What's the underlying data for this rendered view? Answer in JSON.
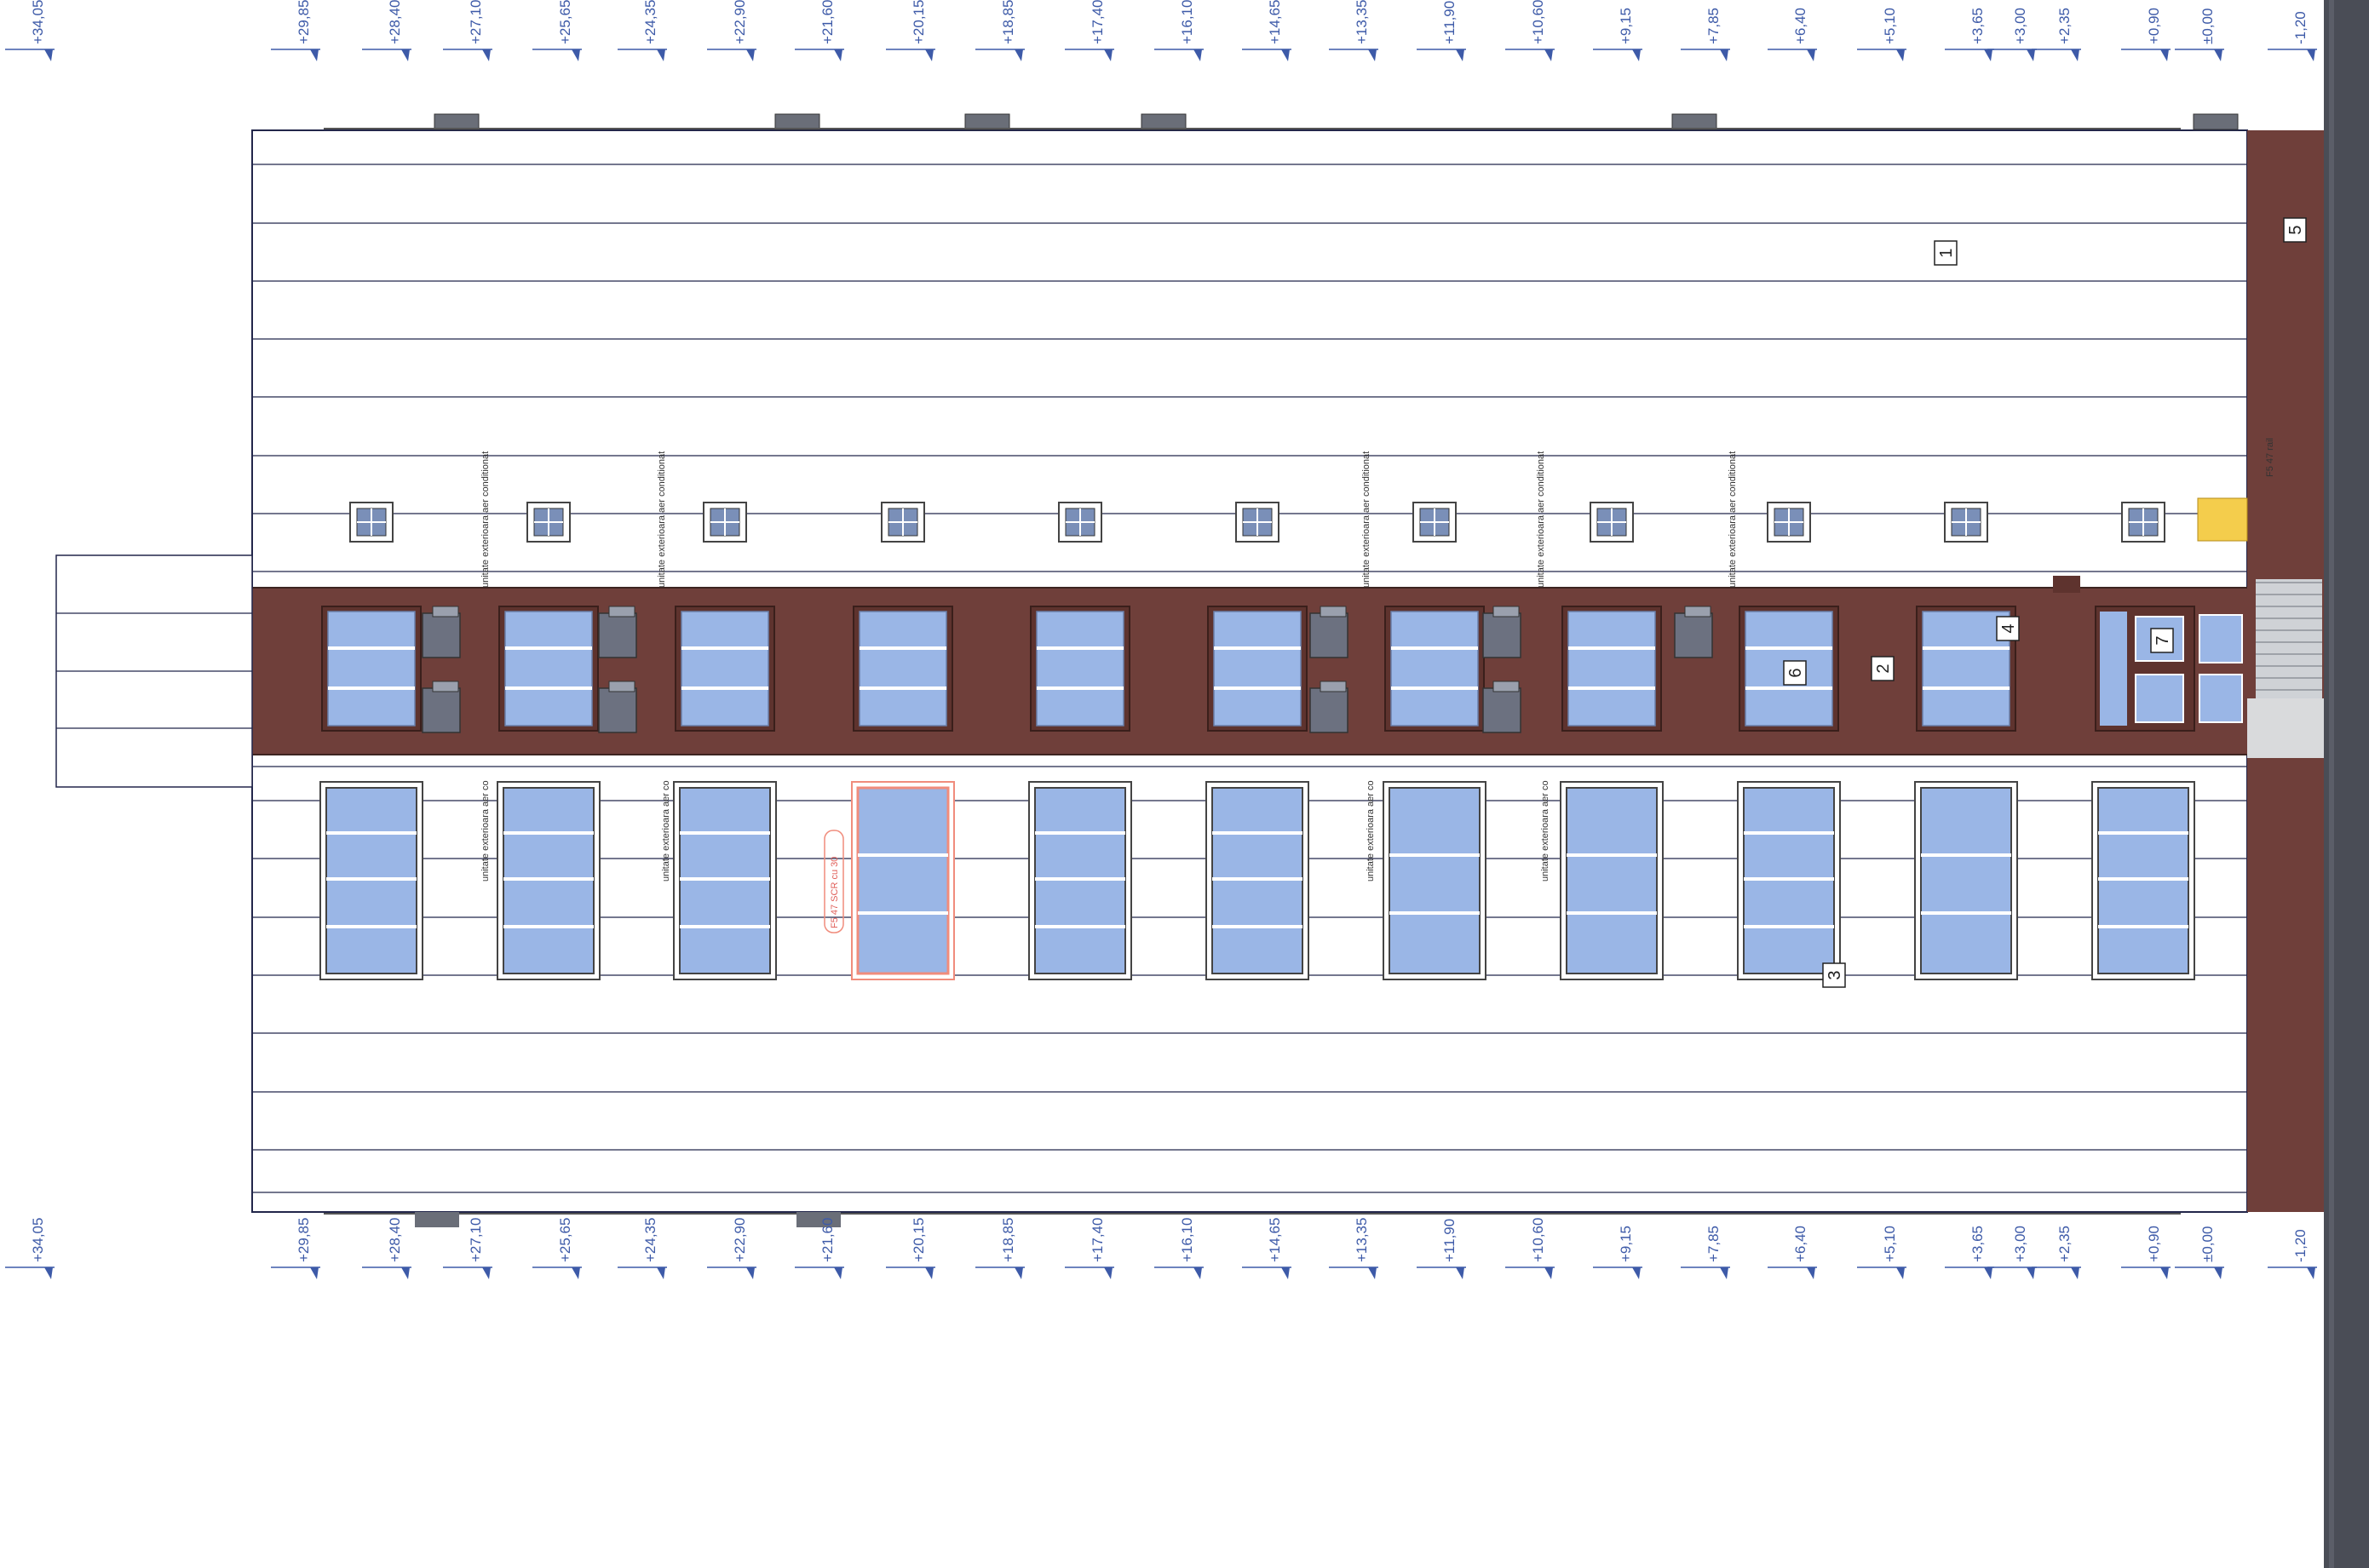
{
  "levels": [
    "+34,05",
    "+29,85",
    "+28,40",
    "+27,10",
    "+25,65",
    "+24,35",
    "+22,90",
    "+21,60",
    "+20,15",
    "+18,85",
    "+17,40",
    "+16,10",
    "+14,65",
    "+13,35",
    "+11,90",
    "+10,60",
    "+9,15",
    "+7,85",
    "+6,40",
    "+5,10",
    "+3,65",
    "+3,00",
    "+2,35",
    "+0,90",
    "±0,00",
    "-1,20"
  ],
  "tags": [
    "1",
    "2",
    "3",
    "4",
    "5",
    "6",
    "7"
  ],
  "notes": {
    "ac_unit": "unitate exterioara aer conditionat",
    "ac_unit_short": "unitate exterioara aer co",
    "highlight": "F5 47 SCR cu 30",
    "rail_label": "F5 47 rail"
  },
  "colors": {
    "brick": "#6f3f3a",
    "glass": "#9ab6e6",
    "line": "#22264a",
    "level_blue": "#3d5aa8",
    "highlight": "#f08c7c",
    "yellow": "#f4cd4c",
    "sidebar": "#4a4d56"
  }
}
